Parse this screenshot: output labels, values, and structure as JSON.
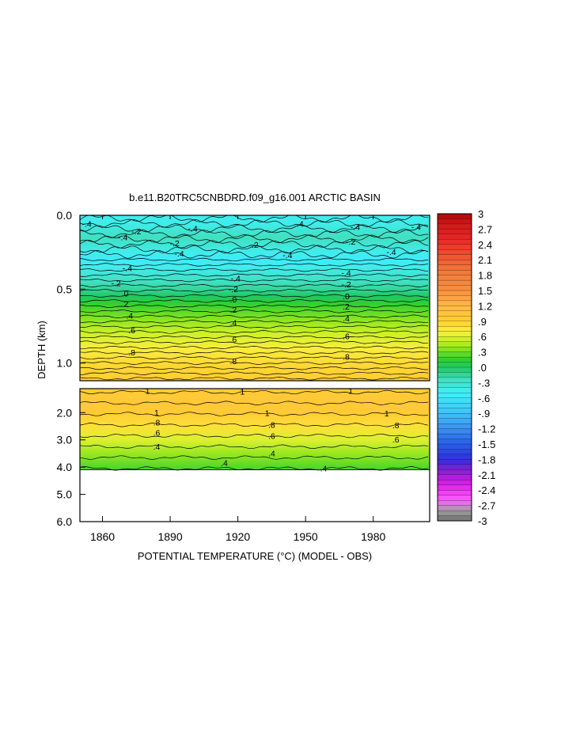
{
  "chart_data": {
    "type": "heatmap",
    "title": "b.e11.B20TRC5CNBDRD.f09_g16.001 ARCTIC BASIN",
    "xlabel": "POTENTIAL TEMPERATURE (°C) (MODEL - OBS)",
    "ylabel": "DEPTH (km)",
    "xlim": [
      1850,
      2005
    ],
    "x_ticks": [
      "1860",
      "1890",
      "1920",
      "1950",
      "1980"
    ],
    "x_tick_values": [
      1860,
      1890,
      1920,
      1950,
      1980
    ],
    "upper_panel": {
      "ylim": [
        0.0,
        1.12
      ],
      "y_ticks": [
        "0.0",
        "0.5",
        "1.0"
      ],
      "y_tick_values": [
        0.0,
        0.5,
        1.0
      ]
    },
    "lower_panel": {
      "ylim": [
        1.12,
        6.0
      ],
      "y_ticks": [
        "2.0",
        "3.0",
        "4.0",
        "5.0",
        "6.0"
      ],
      "y_tick_values": [
        2.0,
        3.0,
        4.0,
        5.0,
        6.0
      ],
      "data_bottom_depth": 4.1
    },
    "depth_profile": [
      {
        "depth": 0.0,
        "value": -0.45
      },
      {
        "depth": 0.05,
        "value": -0.45
      },
      {
        "depth": 0.1,
        "value": -0.35
      },
      {
        "depth": 0.15,
        "value": -0.25
      },
      {
        "depth": 0.2,
        "value": -0.35
      },
      {
        "depth": 0.25,
        "value": -0.45
      },
      {
        "depth": 0.3,
        "value": -0.55
      },
      {
        "depth": 0.35,
        "value": -0.45
      },
      {
        "depth": 0.4,
        "value": -0.35
      },
      {
        "depth": 0.45,
        "value": -0.25
      },
      {
        "depth": 0.5,
        "value": -0.15
      },
      {
        "depth": 0.55,
        "value": 0.0
      },
      {
        "depth": 0.6,
        "value": 0.15
      },
      {
        "depth": 0.65,
        "value": 0.25
      },
      {
        "depth": 0.7,
        "value": 0.35
      },
      {
        "depth": 0.75,
        "value": 0.45
      },
      {
        "depth": 0.8,
        "value": 0.55
      },
      {
        "depth": 0.85,
        "value": 0.62
      },
      {
        "depth": 0.9,
        "value": 0.72
      },
      {
        "depth": 0.95,
        "value": 0.78
      },
      {
        "depth": 1.0,
        "value": 0.84
      },
      {
        "depth": 1.05,
        "value": 0.88
      },
      {
        "depth": 1.12,
        "value": 0.92
      },
      {
        "depth": 1.3,
        "value": 0.98
      },
      {
        "depth": 1.6,
        "value": 1.0
      },
      {
        "depth": 2.0,
        "value": 0.96
      },
      {
        "depth": 2.5,
        "value": 0.8
      },
      {
        "depth": 3.0,
        "value": 0.6
      },
      {
        "depth": 3.5,
        "value": 0.4
      },
      {
        "depth": 4.1,
        "value": 0.2
      }
    ],
    "contour_labels": [
      {
        "text": "-.4",
        "x": 1853,
        "depth": 0.06
      },
      {
        "text": "-.2",
        "x": 1875,
        "depth": 0.11
      },
      {
        "text": "-.4",
        "x": 1869,
        "depth": 0.15
      },
      {
        "text": "-.4",
        "x": 1900,
        "depth": 0.09
      },
      {
        "text": "-.2",
        "x": 1892,
        "depth": 0.19
      },
      {
        "text": "-.4",
        "x": 1894,
        "depth": 0.26
      },
      {
        "text": "-.2",
        "x": 1927,
        "depth": 0.2
      },
      {
        "text": "-.4",
        "x": 1942,
        "depth": 0.27
      },
      {
        "text": "-.4",
        "x": 1947,
        "depth": 0.06
      },
      {
        "text": "-.4",
        "x": 1972,
        "depth": 0.08
      },
      {
        "text": "-.2",
        "x": 1970,
        "depth": 0.18
      },
      {
        "text": "-.4",
        "x": 1988,
        "depth": 0.25
      },
      {
        "text": "-.4",
        "x": 1999,
        "depth": 0.08
      },
      {
        "text": "-.4",
        "x": 1871,
        "depth": 0.36
      },
      {
        "text": "-.2",
        "x": 1866,
        "depth": 0.46
      },
      {
        "text": ".0",
        "x": 1870,
        "depth": 0.53
      },
      {
        "text": ".2",
        "x": 1870,
        "depth": 0.6
      },
      {
        "text": ".4",
        "x": 1872,
        "depth": 0.68
      },
      {
        "text": ".6",
        "x": 1873,
        "depth": 0.78
      },
      {
        "text": ".8",
        "x": 1873,
        "depth": 0.93
      },
      {
        "text": "-.4",
        "x": 1919,
        "depth": 0.43
      },
      {
        "text": "-.2",
        "x": 1918,
        "depth": 0.5
      },
      {
        "text": ".0",
        "x": 1918,
        "depth": 0.57
      },
      {
        "text": ".2",
        "x": 1918,
        "depth": 0.64
      },
      {
        "text": ".4",
        "x": 1918,
        "depth": 0.73
      },
      {
        "text": ".6",
        "x": 1918,
        "depth": 0.84
      },
      {
        "text": ".8",
        "x": 1918,
        "depth": 0.99
      },
      {
        "text": "-.4",
        "x": 1968,
        "depth": 0.39
      },
      {
        "text": "-.2",
        "x": 1968,
        "depth": 0.47
      },
      {
        "text": ".0",
        "x": 1968,
        "depth": 0.55
      },
      {
        "text": ".2",
        "x": 1968,
        "depth": 0.62
      },
      {
        "text": ".4",
        "x": 1968,
        "depth": 0.7
      },
      {
        "text": ".6",
        "x": 1968,
        "depth": 0.82
      },
      {
        "text": ".8",
        "x": 1968,
        "depth": 0.96
      },
      {
        "text": "1",
        "x": 1880,
        "depth": 1.2
      },
      {
        "text": "1",
        "x": 1922,
        "depth": 1.23
      },
      {
        "text": "1",
        "x": 1970,
        "depth": 1.21
      },
      {
        "text": "1",
        "x": 1884,
        "depth": 2.0
      },
      {
        "text": "1",
        "x": 1933,
        "depth": 2.02
      },
      {
        "text": "1",
        "x": 1986,
        "depth": 2.04
      },
      {
        "text": ".8",
        "x": 1884,
        "depth": 2.37
      },
      {
        "text": ".8",
        "x": 1935,
        "depth": 2.45
      },
      {
        "text": ".8",
        "x": 1990,
        "depth": 2.47
      },
      {
        "text": ".6",
        "x": 1884,
        "depth": 2.75
      },
      {
        "text": ".6",
        "x": 1935,
        "depth": 2.87
      },
      {
        "text": ".6",
        "x": 1990,
        "depth": 3.0
      },
      {
        "text": ".4",
        "x": 1884,
        "depth": 3.25
      },
      {
        "text": ".4",
        "x": 1935,
        "depth": 3.5
      },
      {
        "text": ".4",
        "x": 1914,
        "depth": 3.85
      },
      {
        "text": ".4",
        "x": 1958,
        "depth": 4.06
      }
    ],
    "colorbar": {
      "min": -3,
      "max": 3,
      "labels": [
        "3",
        "2.7",
        "2.4",
        "2.1",
        "1.8",
        "1.5",
        "1.2",
        ".9",
        ".6",
        ".3",
        ".0",
        "-.3",
        "-.6",
        "-.9",
        "-1.2",
        "-1.5",
        "-1.8",
        "-2.1",
        "-2.4",
        "-2.7",
        "-3"
      ],
      "colors": [
        {
          "value": -3.0,
          "color": "#707070"
        },
        {
          "value": -2.8,
          "color": "#a0a0a0"
        },
        {
          "value": -2.6,
          "color": "#ff60ff"
        },
        {
          "value": -2.3,
          "color": "#e020e8"
        },
        {
          "value": -2.0,
          "color": "#8020d0"
        },
        {
          "value": -1.8,
          "color": "#3030e0"
        },
        {
          "value": -1.5,
          "color": "#2860e8"
        },
        {
          "value": -1.2,
          "color": "#3c90f0"
        },
        {
          "value": -0.9,
          "color": "#40c0f8"
        },
        {
          "value": -0.5,
          "color": "#40f0f8"
        },
        {
          "value": -0.25,
          "color": "#40e0c0"
        },
        {
          "value": 0.0,
          "color": "#20c860"
        },
        {
          "value": 0.15,
          "color": "#30d030"
        },
        {
          "value": 0.3,
          "color": "#70e020"
        },
        {
          "value": 0.5,
          "color": "#c0f020"
        },
        {
          "value": 0.7,
          "color": "#f8f040"
        },
        {
          "value": 0.9,
          "color": "#ffd030"
        },
        {
          "value": 1.2,
          "color": "#ffb848"
        },
        {
          "value": 1.5,
          "color": "#f89040"
        },
        {
          "value": 1.9,
          "color": "#f07838"
        },
        {
          "value": 2.2,
          "color": "#f05030"
        },
        {
          "value": 2.5,
          "color": "#e82828"
        },
        {
          "value": 2.8,
          "color": "#d01818"
        },
        {
          "value": 3.0,
          "color": "#b00808"
        }
      ]
    },
    "grid": false,
    "legend": "colorbar-right"
  }
}
